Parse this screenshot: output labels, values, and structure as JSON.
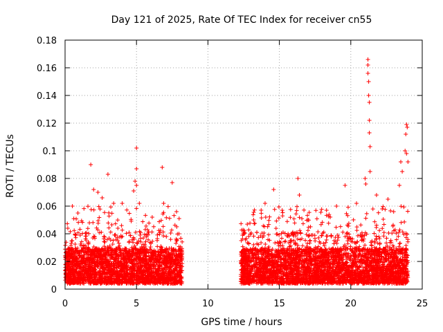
{
  "chart_data": {
    "type": "scatter",
    "title": "Day 121 of 2025, Rate Of TEC Index for receiver cn55",
    "xlabel": "GPS time / hours",
    "ylabel": "ROTI / TECUs",
    "xlim": [
      0,
      25
    ],
    "ylim": [
      0,
      0.18
    ],
    "xticks": [
      0,
      5,
      10,
      15,
      20,
      25
    ],
    "xtick_labels": [
      "0",
      "5",
      "10",
      "15",
      "20",
      "25"
    ],
    "yticks": [
      0,
      0.02,
      0.04,
      0.06,
      0.08,
      0.1,
      0.12,
      0.14,
      0.16,
      0.18
    ],
    "ytick_labels": [
      "0",
      "0.02",
      "0.04",
      "0.06",
      "0.08",
      "0.1",
      "0.12",
      "0.14",
      "0.16",
      "0.18"
    ],
    "grid": true,
    "marker": "plus",
    "color": "#ff0000",
    "series": [
      {
        "name": "ROTI",
        "points": [
          [
            0.9,
            0.055
          ],
          [
            1.8,
            0.09
          ],
          [
            2.0,
            0.072
          ],
          [
            2.3,
            0.07
          ],
          [
            2.6,
            0.066
          ],
          [
            3.0,
            0.083
          ],
          [
            3.4,
            0.062
          ],
          [
            4.0,
            0.062
          ],
          [
            4.8,
            0.071
          ],
          [
            4.9,
            0.078
          ],
          [
            5.0,
            0.102
          ],
          [
            5.0,
            0.087
          ],
          [
            5.0,
            0.075
          ],
          [
            5.2,
            0.062
          ],
          [
            6.1,
            0.052
          ],
          [
            6.8,
            0.088
          ],
          [
            6.9,
            0.062
          ],
          [
            7.5,
            0.077
          ],
          [
            7.8,
            0.056
          ],
          [
            13.2,
            0.05
          ],
          [
            14.0,
            0.062
          ],
          [
            14.6,
            0.072
          ],
          [
            15.2,
            0.057
          ],
          [
            16.3,
            0.08
          ],
          [
            16.4,
            0.068
          ],
          [
            17.0,
            0.05
          ],
          [
            18.3,
            0.057
          ],
          [
            19.0,
            0.06
          ],
          [
            19.6,
            0.075
          ],
          [
            20.4,
            0.062
          ],
          [
            21.0,
            0.08
          ],
          [
            21.05,
            0.076
          ],
          [
            21.2,
            0.166
          ],
          [
            21.2,
            0.162
          ],
          [
            21.2,
            0.156
          ],
          [
            21.25,
            0.15
          ],
          [
            21.25,
            0.14
          ],
          [
            21.3,
            0.135
          ],
          [
            21.3,
            0.122
          ],
          [
            21.35,
            0.103
          ],
          [
            21.35,
            0.085
          ],
          [
            21.3,
            0.113
          ],
          [
            21.8,
            0.068
          ],
          [
            22.2,
            0.058
          ],
          [
            22.6,
            0.065
          ],
          [
            23.0,
            0.056
          ],
          [
            23.4,
            0.075
          ],
          [
            23.5,
            0.092
          ],
          [
            23.6,
            0.085
          ],
          [
            23.8,
            0.1
          ],
          [
            23.85,
            0.112
          ],
          [
            23.9,
            0.119
          ],
          [
            23.95,
            0.117
          ],
          [
            24.0,
            0.092
          ],
          [
            23.9,
            0.098
          ]
        ],
        "segments": [
          {
            "x_range": [
              0.0,
              8.2
            ],
            "base_range": [
              0.004,
              0.038
            ],
            "spike_max": 0.06
          },
          {
            "x_range": [
              12.3,
              24.0
            ],
            "base_range": [
              0.004,
              0.038
            ],
            "spike_max": 0.06
          }
        ]
      }
    ]
  }
}
